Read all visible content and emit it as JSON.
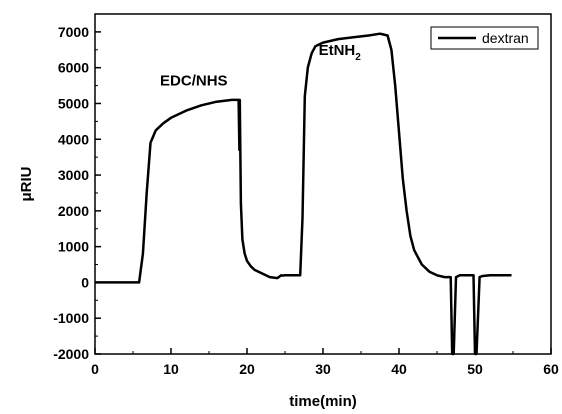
{
  "chart_data": {
    "type": "line",
    "title": "",
    "xlabel": "time(min)",
    "ylabel": "μRIU",
    "xlim": [
      0,
      60
    ],
    "ylim": [
      -2000,
      7500
    ],
    "x_ticks": [
      0,
      10,
      20,
      30,
      40,
      50,
      60
    ],
    "x_tick_labels": [
      "0",
      "10",
      "20",
      "30",
      "40",
      "50",
      "60"
    ],
    "y_ticks": [
      -2000,
      -1000,
      0,
      1000,
      2000,
      3000,
      4000,
      5000,
      6000,
      7000
    ],
    "y_tick_labels": [
      "-2000",
      "-1000",
      "0",
      "1000",
      "2000",
      "3000",
      "4000",
      "5000",
      "6000",
      "7000"
    ],
    "grid": false,
    "legend_position": "top-right",
    "series": [
      {
        "name": "dextran",
        "color": "#000000",
        "x": [
          0,
          5.8,
          6.3,
          6.8,
          7.3,
          8.0,
          9.0,
          10.0,
          12.0,
          14.0,
          16.0,
          18.0,
          18.9,
          19.0,
          19.05,
          19.1,
          19.2,
          19.4,
          19.7,
          20.0,
          20.5,
          21.0,
          22.0,
          23.0,
          24.0,
          24.5,
          24.6,
          25.0,
          26.0,
          27.0,
          27.3,
          27.6,
          28.0,
          28.5,
          29.0,
          30.0,
          32.0,
          34.0,
          36.0,
          37.5,
          38.5,
          39.0,
          39.5,
          40.0,
          40.5,
          41.0,
          41.5,
          42.0,
          43.0,
          44.0,
          45.0,
          46.0,
          46.8,
          47.0,
          47.2,
          47.5,
          47.8,
          48.0,
          49.0,
          49.8,
          50.0,
          50.2,
          50.6,
          51.0,
          52.0,
          53.0,
          54.0,
          54.8
        ],
        "y": [
          0,
          0,
          800,
          2500,
          3900,
          4250,
          4450,
          4600,
          4800,
          4950,
          5050,
          5100,
          5100,
          3700,
          5100,
          4000,
          2200,
          1200,
          800,
          600,
          450,
          350,
          250,
          150,
          120,
          200,
          190,
          200,
          200,
          200,
          1800,
          5200,
          6000,
          6400,
          6600,
          6700,
          6800,
          6850,
          6900,
          6950,
          6900,
          6500,
          5500,
          4200,
          2900,
          2000,
          1300,
          900,
          500,
          300,
          200,
          150,
          150,
          -2000,
          -2000,
          150,
          180,
          200,
          200,
          200,
          -2000,
          -2000,
          150,
          180,
          200,
          200,
          200,
          200
        ]
      }
    ],
    "annotations": [
      {
        "text": "EDC/NHS",
        "x": 13.0,
        "y": 5500
      },
      {
        "text": "EtNH",
        "subscript": "2",
        "x": 32.2,
        "y": 6350
      }
    ]
  }
}
